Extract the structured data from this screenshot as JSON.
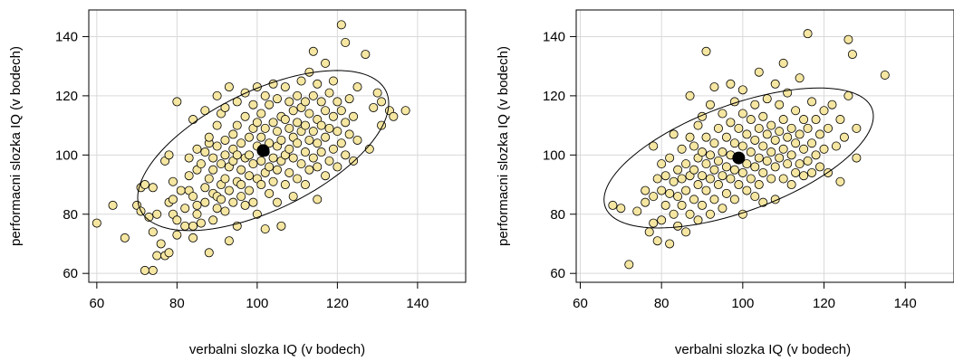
{
  "chart_data": [
    {
      "type": "scatter",
      "xlabel": "verbalni slozka IQ (v bodech)",
      "ylabel": "performacni slozka IQ (v bodech)",
      "xlim": [
        58,
        152
      ],
      "ylim": [
        57,
        149
      ],
      "xticks": [
        60,
        80,
        100,
        120,
        140
      ],
      "yticks": [
        60,
        80,
        100,
        120,
        140
      ],
      "grid": true,
      "point_color": "#f5e6a1",
      "mean": [
        101.5,
        101.5
      ],
      "ellipse": {
        "center": [
          101.5,
          101.5
        ],
        "semi_major": 37,
        "semi_minor": 18.5,
        "angle_deg": 38
      },
      "points": [
        [
          60,
          77
        ],
        [
          64,
          83
        ],
        [
          67,
          72
        ],
        [
          70,
          83
        ],
        [
          71,
          81
        ],
        [
          71,
          89
        ],
        [
          72,
          61
        ],
        [
          72,
          90
        ],
        [
          73,
          79
        ],
        [
          74,
          74
        ],
        [
          74,
          61
        ],
        [
          74,
          89
        ],
        [
          75,
          66
        ],
        [
          75,
          80
        ],
        [
          76,
          70
        ],
        [
          77,
          66
        ],
        [
          77,
          98
        ],
        [
          78,
          100
        ],
        [
          78,
          84
        ],
        [
          78,
          67
        ],
        [
          79,
          80
        ],
        [
          79,
          91
        ],
        [
          79,
          85
        ],
        [
          80,
          118
        ],
        [
          80,
          73
        ],
        [
          80,
          78
        ],
        [
          81,
          88
        ],
        [
          82,
          76
        ],
        [
          82,
          82
        ],
        [
          83,
          99
        ],
        [
          83,
          93
        ],
        [
          83,
          88
        ],
        [
          84,
          72
        ],
        [
          84,
          76
        ],
        [
          84,
          86
        ],
        [
          84,
          112
        ],
        [
          85,
          80
        ],
        [
          85,
          95
        ],
        [
          85,
          102
        ],
        [
          85,
          83
        ],
        [
          86,
          97
        ],
        [
          86,
          77
        ],
        [
          87,
          89
        ],
        [
          87,
          101
        ],
        [
          87,
          84
        ],
        [
          87,
          115
        ],
        [
          88,
          67
        ],
        [
          88,
          92
        ],
        [
          88,
          104
        ],
        [
          88,
          106
        ],
        [
          89,
          78
        ],
        [
          89,
          95
        ],
        [
          89,
          87
        ],
        [
          89,
          99
        ],
        [
          90,
          82
        ],
        [
          90,
          86
        ],
        [
          90,
          103
        ],
        [
          90,
          110
        ],
        [
          90,
          120
        ],
        [
          91,
          90
        ],
        [
          91,
          97
        ],
        [
          91,
          85
        ],
        [
          91,
          114
        ],
        [
          92,
          81
        ],
        [
          92,
          100
        ],
        [
          92,
          105
        ],
        [
          92,
          92
        ],
        [
          92,
          116
        ],
        [
          93,
          71
        ],
        [
          93,
          96
        ],
        [
          93,
          88
        ],
        [
          93,
          123
        ],
        [
          94,
          84
        ],
        [
          94,
          98
        ],
        [
          94,
          107
        ],
        [
          94,
          102
        ],
        [
          95,
          76
        ],
        [
          95,
          91
        ],
        [
          95,
          110
        ],
        [
          95,
          100
        ],
        [
          95,
          118
        ],
        [
          96,
          90
        ],
        [
          96,
          95
        ],
        [
          96,
          86
        ],
        [
          96,
          104
        ],
        [
          97,
          99
        ],
        [
          97,
          113
        ],
        [
          97,
          83
        ],
        [
          97,
          121
        ],
        [
          98,
          88
        ],
        [
          98,
          93
        ],
        [
          98,
          106
        ],
        [
          98,
          100
        ],
        [
          99,
          84
        ],
        [
          99,
          109
        ],
        [
          99,
          97
        ],
        [
          99,
          117
        ],
        [
          100,
          80
        ],
        [
          100,
          92
        ],
        [
          100,
          103
        ],
        [
          100,
          111
        ],
        [
          100,
          123
        ],
        [
          101,
          90
        ],
        [
          101,
          98
        ],
        [
          101,
          106
        ],
        [
          101,
          114
        ],
        [
          102,
          75
        ],
        [
          102,
          94
        ],
        [
          102,
          101
        ],
        [
          102,
          109
        ],
        [
          102,
          120
        ],
        [
          103,
          87
        ],
        [
          103,
          96
        ],
        [
          103,
          104
        ],
        [
          103,
          117
        ],
        [
          104,
          91
        ],
        [
          104,
          99
        ],
        [
          104,
          111
        ],
        [
          104,
          124
        ],
        [
          105,
          84
        ],
        [
          105,
          95
        ],
        [
          105,
          103
        ],
        [
          105,
          108
        ],
        [
          105,
          119
        ],
        [
          106,
          76
        ],
        [
          106,
          98
        ],
        [
          106,
          105
        ],
        [
          106,
          113
        ],
        [
          107,
          90
        ],
        [
          107,
          100
        ],
        [
          107,
          112
        ],
        [
          107,
          123
        ],
        [
          108,
          94
        ],
        [
          108,
          102
        ],
        [
          108,
          109
        ],
        [
          108,
          118
        ],
        [
          109,
          86
        ],
        [
          109,
          99
        ],
        [
          109,
          106
        ],
        [
          109,
          115
        ],
        [
          110,
          92
        ],
        [
          110,
          104
        ],
        [
          110,
          111
        ],
        [
          110,
          120
        ],
        [
          111,
          97
        ],
        [
          111,
          108
        ],
        [
          111,
          116
        ],
        [
          111,
          125
        ],
        [
          112,
          90
        ],
        [
          112,
          101
        ],
        [
          112,
          110
        ],
        [
          112,
          118
        ],
        [
          113,
          95
        ],
        [
          113,
          105
        ],
        [
          113,
          114
        ],
        [
          113,
          128
        ],
        [
          114,
          99
        ],
        [
          114,
          108
        ],
        [
          114,
          120
        ],
        [
          114,
          135
        ],
        [
          115,
          85
        ],
        [
          115,
          96
        ],
        [
          115,
          104
        ],
        [
          115,
          112
        ],
        [
          115,
          124
        ],
        [
          116,
          101
        ],
        [
          116,
          110
        ],
        [
          116,
          118
        ],
        [
          117,
          93
        ],
        [
          117,
          106
        ],
        [
          117,
          115
        ],
        [
          117,
          131
        ],
        [
          118,
          98
        ],
        [
          118,
          109
        ],
        [
          118,
          121
        ],
        [
          119,
          102
        ],
        [
          119,
          113
        ],
        [
          119,
          125
        ],
        [
          120,
          96
        ],
        [
          120,
          108
        ],
        [
          120,
          118
        ],
        [
          121,
          144
        ],
        [
          121,
          104
        ],
        [
          121,
          115
        ],
        [
          122,
          100
        ],
        [
          122,
          111
        ],
        [
          122,
          138
        ],
        [
          123,
          107
        ],
        [
          123,
          119
        ],
        [
          124,
          98
        ],
        [
          124,
          113
        ],
        [
          125,
          105
        ],
        [
          125,
          123
        ],
        [
          127,
          134
        ],
        [
          128,
          102
        ],
        [
          129,
          116
        ],
        [
          130,
          121
        ],
        [
          131,
          110
        ],
        [
          131,
          118
        ],
        [
          133,
          115
        ],
        [
          134,
          113
        ],
        [
          137,
          115
        ]
      ]
    },
    {
      "type": "scatter",
      "xlabel": "verbalni slozka IQ (v bodech)",
      "ylabel": "performacni slozka IQ (v bodech)",
      "xlim": [
        59,
        152
      ],
      "ylim": [
        57,
        149
      ],
      "xticks": [
        60,
        80,
        100,
        120,
        140
      ],
      "yticks": [
        60,
        80,
        100,
        120,
        140
      ],
      "grid": true,
      "point_color": "#f5e6a1",
      "mean": [
        99,
        99
      ],
      "ellipse": {
        "center": [
          99,
          99
        ],
        "semi_major": 37,
        "semi_minor": 17,
        "angle_deg": 30
      },
      "points": [
        [
          68,
          83
        ],
        [
          70,
          82
        ],
        [
          72,
          63
        ],
        [
          74,
          81
        ],
        [
          76,
          84
        ],
        [
          76,
          88
        ],
        [
          77,
          74
        ],
        [
          78,
          77
        ],
        [
          78,
          86
        ],
        [
          78,
          103
        ],
        [
          79,
          92
        ],
        [
          79,
          71
        ],
        [
          80,
          78
        ],
        [
          80,
          97
        ],
        [
          80,
          88
        ],
        [
          81,
          83
        ],
        [
          81,
          93
        ],
        [
          82,
          70
        ],
        [
          82,
          87
        ],
        [
          82,
          99
        ],
        [
          83,
          80
        ],
        [
          83,
          91
        ],
        [
          83,
          107
        ],
        [
          84,
          76
        ],
        [
          84,
          86
        ],
        [
          84,
          95
        ],
        [
          85,
          83
        ],
        [
          85,
          92
        ],
        [
          85,
          102
        ],
        [
          86,
          74
        ],
        [
          86,
          88
        ],
        [
          86,
          97
        ],
        [
          87,
          80
        ],
        [
          87,
          93
        ],
        [
          87,
          106
        ],
        [
          87,
          120
        ],
        [
          88,
          85
        ],
        [
          88,
          95
        ],
        [
          88,
          103
        ],
        [
          89,
          78
        ],
        [
          89,
          90
        ],
        [
          89,
          99
        ],
        [
          89,
          110
        ],
        [
          90,
          83
        ],
        [
          90,
          93
        ],
        [
          90,
          101
        ],
        [
          90,
          113
        ],
        [
          91,
          135
        ],
        [
          91,
          88
        ],
        [
          91,
          97
        ],
        [
          91,
          106
        ],
        [
          92,
          80
        ],
        [
          92,
          92
        ],
        [
          92,
          100
        ],
        [
          92,
          117
        ],
        [
          93,
          85
        ],
        [
          93,
          95
        ],
        [
          93,
          104
        ],
        [
          93,
          123
        ],
        [
          94,
          90
        ],
        [
          94,
          98
        ],
        [
          94,
          109
        ],
        [
          95,
          82
        ],
        [
          95,
          93
        ],
        [
          95,
          101
        ],
        [
          95,
          114
        ],
        [
          96,
          87
        ],
        [
          96,
          96
        ],
        [
          96,
          106
        ],
        [
          97,
          92
        ],
        [
          97,
          100
        ],
        [
          97,
          111
        ],
        [
          97,
          124
        ],
        [
          98,
          85
        ],
        [
          98,
          95
        ],
        [
          98,
          104
        ],
        [
          98,
          118
        ],
        [
          99,
          90
        ],
        [
          99,
          99
        ],
        [
          99,
          109
        ],
        [
          100,
          80
        ],
        [
          100,
          94
        ],
        [
          100,
          103
        ],
        [
          100,
          114
        ],
        [
          100,
          122
        ],
        [
          101,
          88
        ],
        [
          101,
          97
        ],
        [
          101,
          107
        ],
        [
          102,
          92
        ],
        [
          102,
          101
        ],
        [
          102,
          112
        ],
        [
          103,
          86
        ],
        [
          103,
          96
        ],
        [
          103,
          105
        ],
        [
          103,
          117
        ],
        [
          104,
          90
        ],
        [
          104,
          99
        ],
        [
          104,
          109
        ],
        [
          104,
          128
        ],
        [
          105,
          84
        ],
        [
          105,
          94
        ],
        [
          105,
          103
        ],
        [
          105,
          113
        ],
        [
          106,
          98
        ],
        [
          106,
          107
        ],
        [
          106,
          119
        ],
        [
          107,
          92
        ],
        [
          107,
          101
        ],
        [
          107,
          110
        ],
        [
          108,
          85
        ],
        [
          108,
          96
        ],
        [
          108,
          105
        ],
        [
          108,
          124
        ],
        [
          109,
          99
        ],
        [
          109,
          108
        ],
        [
          109,
          117
        ],
        [
          110,
          92
        ],
        [
          110,
          102
        ],
        [
          110,
          112
        ],
        [
          110,
          131
        ],
        [
          111,
          97
        ],
        [
          111,
          106
        ],
        [
          111,
          121
        ],
        [
          112,
          90
        ],
        [
          112,
          100
        ],
        [
          112,
          109
        ],
        [
          113,
          94
        ],
        [
          113,
          104
        ],
        [
          113,
          115
        ],
        [
          114,
          97
        ],
        [
          114,
          107
        ],
        [
          114,
          126
        ],
        [
          115,
          93
        ],
        [
          115,
          102
        ],
        [
          115,
          112
        ],
        [
          116,
          141
        ],
        [
          116,
          98
        ],
        [
          116,
          109
        ],
        [
          117,
          94
        ],
        [
          117,
          104
        ],
        [
          117,
          118
        ],
        [
          118,
          100
        ],
        [
          118,
          112
        ],
        [
          119,
          96
        ],
        [
          119,
          107
        ],
        [
          120,
          102
        ],
        [
          120,
          115
        ],
        [
          121,
          94
        ],
        [
          121,
          109
        ],
        [
          122,
          117
        ],
        [
          123,
          103
        ],
        [
          124,
          91
        ],
        [
          124,
          112
        ],
        [
          125,
          106
        ],
        [
          126,
          139
        ],
        [
          126,
          120
        ],
        [
          127,
          134
        ],
        [
          128,
          99
        ],
        [
          128,
          109
        ],
        [
          135,
          127
        ]
      ]
    }
  ]
}
